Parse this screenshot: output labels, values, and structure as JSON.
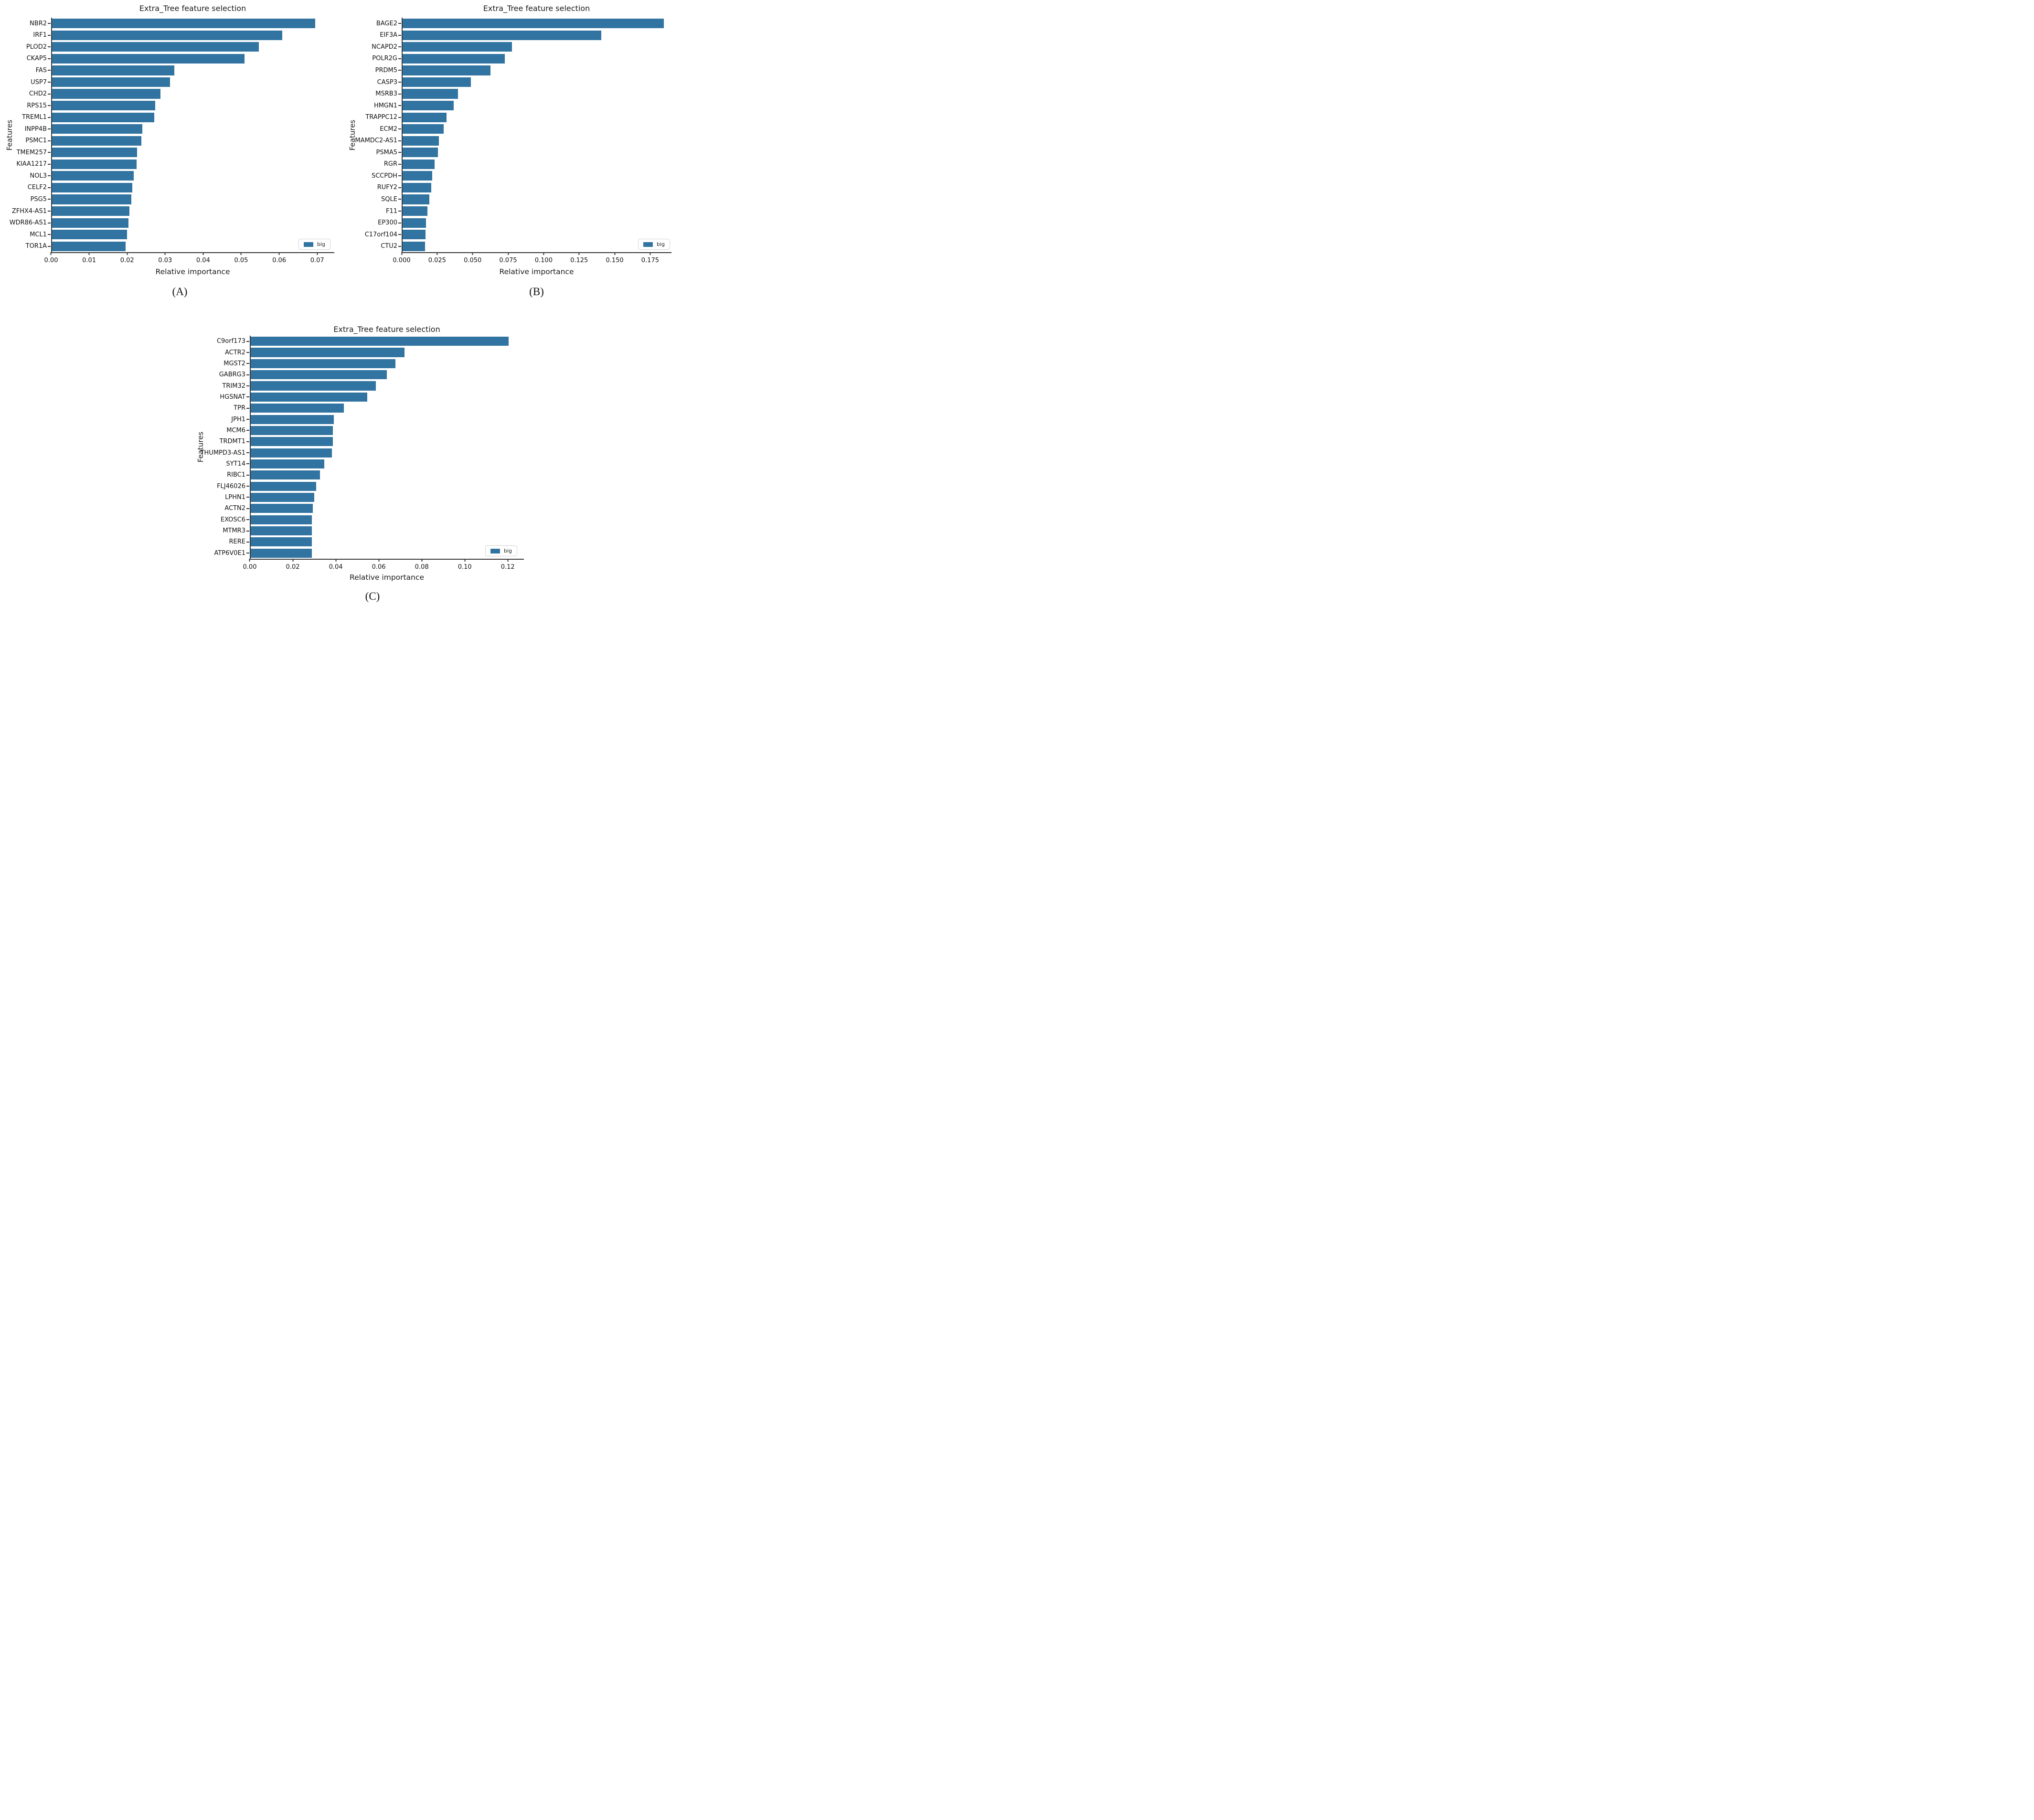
{
  "figure": {
    "bar_color": "#3274a1",
    "axis_color": "#3a3a3a",
    "legend_label": "big",
    "captions": [
      "(A)",
      "(B)",
      "(C)"
    ]
  },
  "chart_data": [
    {
      "type": "bar",
      "orientation": "horizontal",
      "panel": "A",
      "title": "Extra_Tree feature selection",
      "xlabel": "Relative importance",
      "ylabel": "Features",
      "legend": {
        "label": "big",
        "position": "lower right"
      },
      "grid": false,
      "xlim": [
        0,
        0.0745
      ],
      "xtick_labels": [
        "0.00",
        "0.01",
        "0.02",
        "0.03",
        "0.04",
        "0.05",
        "0.06",
        "0.07"
      ],
      "categories": [
        "NBR2",
        "IRF1",
        "PLOD2",
        "CKAP5",
        "FAS",
        "USP7",
        "CHD2",
        "RPS15",
        "TREML1",
        "INPP4B",
        "PSMC1",
        "TMEM257",
        "KIAA1217",
        "NOL3",
        "CELF2",
        "PSG5",
        "ZFHX4-AS1",
        "WDR86-AS1",
        "MCL1",
        "TOR1A"
      ],
      "values": [
        0.0692,
        0.0606,
        0.0544,
        0.0506,
        0.0322,
        0.031,
        0.0285,
        0.0271,
        0.0269,
        0.0237,
        0.0235,
        0.0224,
        0.0222,
        0.0215,
        0.0211,
        0.0209,
        0.0204,
        0.0201,
        0.0197,
        0.0194
      ]
    },
    {
      "type": "bar",
      "orientation": "horizontal",
      "panel": "B",
      "title": "Extra_Tree feature selection",
      "xlabel": "Relative importance",
      "ylabel": "Features",
      "legend": {
        "label": "big",
        "position": "lower right"
      },
      "grid": false,
      "xlim": [
        0,
        0.19
      ],
      "xtick_labels": [
        "0.000",
        "0.025",
        "0.050",
        "0.075",
        "0.100",
        "0.125",
        "0.150",
        "0.175"
      ],
      "categories": [
        "BAGE2",
        "EIF3A",
        "NCAPD2",
        "POLR2G",
        "PRDM5",
        "CASP3",
        "MSRB3",
        "HMGN1",
        "TRAPPC12",
        "ECM2",
        "MAMDC2-AS1",
        "PSMA5",
        "RGR",
        "SCCPDH",
        "RUFY2",
        "SQLE",
        "F11",
        "EP300",
        "C17orf104",
        "CTU2"
      ],
      "values": [
        0.184,
        0.14,
        0.077,
        0.072,
        0.062,
        0.048,
        0.039,
        0.036,
        0.031,
        0.029,
        0.0254,
        0.025,
        0.0224,
        0.0208,
        0.0202,
        0.0189,
        0.0174,
        0.0164,
        0.0162,
        0.0158
      ]
    },
    {
      "type": "bar",
      "orientation": "horizontal",
      "panel": "C",
      "title": "Extra_Tree feature selection",
      "xlabel": "Relative importance",
      "ylabel": "Features",
      "legend": {
        "label": "big",
        "position": "lower right"
      },
      "grid": false,
      "xlim": [
        0,
        0.1275
      ],
      "xtick_labels": [
        "0.00",
        "0.02",
        "0.04",
        "0.06",
        "0.08",
        "0.10",
        "0.12"
      ],
      "categories": [
        "C9orf173",
        "ACTR2",
        "MGST2",
        "GABRG3",
        "TRIM32",
        "HGSNAT",
        "TPR",
        "JPH1",
        "MCM6",
        "TRDMT1",
        "THUMPD3-AS1",
        "SYT14",
        "RIBC1",
        "FLJ46026",
        "LPHN1",
        "ACTN2",
        "EXOSC6",
        "MTMR3",
        "RERE",
        "ATP6V0E1"
      ],
      "values": [
        0.12,
        0.0716,
        0.0672,
        0.0634,
        0.0581,
        0.0541,
        0.0433,
        0.0387,
        0.0383,
        0.0381,
        0.0378,
        0.0341,
        0.0321,
        0.0305,
        0.0295,
        0.0288,
        0.0285,
        0.0285,
        0.0285,
        0.0284
      ]
    }
  ]
}
